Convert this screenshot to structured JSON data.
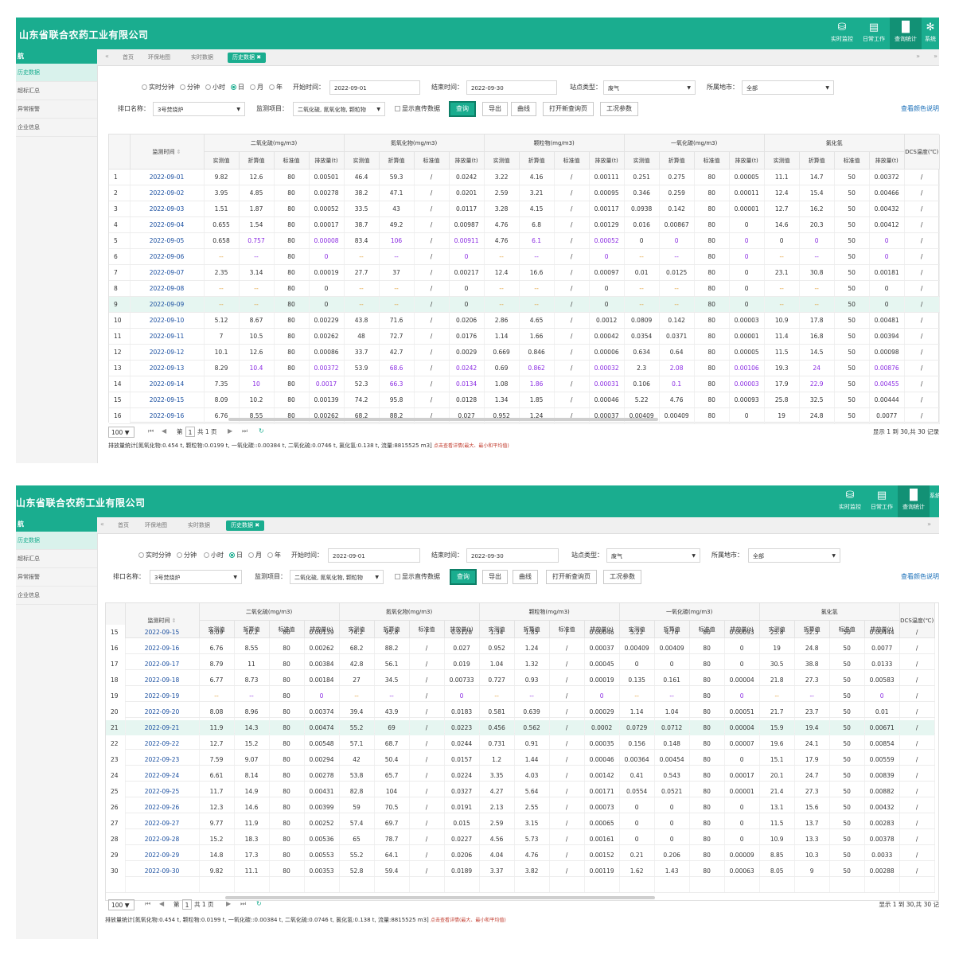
{
  "app": {
    "title": "山东省联合农药工业有限公司",
    "title2": "山东省联合农药工业有限公司",
    "nav": [
      "实时监控",
      "日常工作",
      "查询统计",
      "系统"
    ]
  },
  "sidebar": {
    "head": "航",
    "items": [
      "历史数据",
      "超标汇总",
      "异常报警",
      "企业信息"
    ]
  },
  "tabs": [
    "首页",
    "环保地图",
    "实时数据",
    "历史数据"
  ],
  "filters": {
    "granularity": [
      "实时分钟",
      "分钟",
      "小时",
      "日",
      "月",
      "年"
    ],
    "start_label": "开始时间：",
    "start": "2022-09-01",
    "end_label": "结束时间：",
    "end": "2022-09-30",
    "station_label": "站点类型：",
    "station": "废气",
    "city_label": "所属地市：",
    "city": "全部",
    "outlet_label": "排口名称：",
    "outlet": "3号焚烧炉",
    "item_label": "监测项目：",
    "item": "二氧化硫, 氮氧化物, 颗粒物",
    "show_label": "显示直传数据",
    "btn_query": "查询",
    "btn_export": "导出",
    "btn_curve": "曲线",
    "btn_newpage": "打开新查询页",
    "btn_params": "工况参数",
    "color_link": "查看颜色说明"
  },
  "table": {
    "time_header": "监测时间",
    "groups": [
      "二氧化硫(mg/m3)",
      "氮氧化物(mg/m3)",
      "颗粒物(mg/m3)",
      "一氧化碳(mg/m3)",
      "氯化氢"
    ],
    "dcs": "DCS温度(℃)",
    "sub": [
      "实测值",
      "折算值",
      "标准值",
      "排放量(t)"
    ],
    "rows": [
      [
        "1",
        "2022-09-01",
        "9.82",
        "12.6",
        "80",
        "0.00501",
        "46.4",
        "59.3",
        "/",
        "0.0242",
        "3.22",
        "4.16",
        "/",
        "0.00111",
        "0.251",
        "0.275",
        "80",
        "0.00005",
        "11.1",
        "14.7",
        "50",
        "0.00372",
        "/"
      ],
      [
        "2",
        "2022-09-02",
        "3.95",
        "4.85",
        "80",
        "0.00278",
        "38.2",
        "47.1",
        "/",
        "0.0201",
        "2.59",
        "3.21",
        "/",
        "0.00095",
        "0.346",
        "0.259",
        "80",
        "0.00011",
        "12.4",
        "15.4",
        "50",
        "0.00466",
        "/"
      ],
      [
        "3",
        "2022-09-03",
        "1.51",
        "1.87",
        "80",
        "0.00052",
        "33.5",
        "43",
        "/",
        "0.0117",
        "3.28",
        "4.15",
        "/",
        "0.00117",
        "0.0938",
        "0.142",
        "80",
        "0.00001",
        "12.7",
        "16.2",
        "50",
        "0.00432",
        "/"
      ],
      [
        "4",
        "2022-09-04",
        "0.655",
        "1.54",
        "80",
        "0.00017",
        "38.7",
        "49.2",
        "/",
        "0.00987",
        "4.76",
        "6.8",
        "/",
        "0.00129",
        "0.016",
        "0.00867",
        "80",
        "0",
        "14.6",
        "20.3",
        "50",
        "0.00412",
        "/"
      ],
      [
        "5",
        "2022-09-05",
        "0.658",
        "0.757",
        "80",
        "0.00008",
        "83.4",
        "106",
        "/",
        "0.00911",
        "4.76",
        "6.1",
        "/",
        "0.00052",
        "0",
        "0",
        "80",
        "0",
        "0",
        "0",
        "50",
        "0",
        "/"
      ],
      [
        "6",
        "2022-09-06",
        "--",
        "--",
        "80",
        "0",
        "--",
        "--",
        "/",
        "0",
        "--",
        "--",
        "/",
        "0",
        "--",
        "--",
        "80",
        "0",
        "--",
        "--",
        "50",
        "0",
        "/"
      ],
      [
        "7",
        "2022-09-07",
        "2.35",
        "3.14",
        "80",
        "0.00019",
        "27.7",
        "37",
        "/",
        "0.00217",
        "12.4",
        "16.6",
        "/",
        "0.00097",
        "0.01",
        "0.0125",
        "80",
        "0",
        "23.1",
        "30.8",
        "50",
        "0.00181",
        "/"
      ],
      [
        "8",
        "2022-09-08",
        "--",
        "--",
        "80",
        "0",
        "--",
        "--",
        "/",
        "0",
        "--",
        "--",
        "/",
        "0",
        "--",
        "--",
        "80",
        "0",
        "--",
        "--",
        "50",
        "0",
        "/"
      ],
      [
        "9",
        "2022-09-09",
        "--",
        "--",
        "80",
        "0",
        "--",
        "--",
        "/",
        "0",
        "--",
        "--",
        "/",
        "0",
        "--",
        "--",
        "80",
        "0",
        "--",
        "--",
        "50",
        "0",
        "/"
      ],
      [
        "10",
        "2022-09-10",
        "5.12",
        "8.67",
        "80",
        "0.00229",
        "43.8",
        "71.6",
        "/",
        "0.0206",
        "2.86",
        "4.65",
        "/",
        "0.0012",
        "0.0809",
        "0.142",
        "80",
        "0.00003",
        "10.9",
        "17.8",
        "50",
        "0.00481",
        "/"
      ],
      [
        "11",
        "2022-09-11",
        "7",
        "10.5",
        "80",
        "0.00262",
        "48",
        "72.7",
        "/",
        "0.0176",
        "1.14",
        "1.66",
        "/",
        "0.00042",
        "0.0354",
        "0.0371",
        "80",
        "0.00001",
        "11.4",
        "16.8",
        "50",
        "0.00394",
        "/"
      ],
      [
        "12",
        "2022-09-12",
        "10.1",
        "12.6",
        "80",
        "0.00086",
        "33.7",
        "42.7",
        "/",
        "0.0029",
        "0.669",
        "0.846",
        "/",
        "0.00006",
        "0.634",
        "0.64",
        "80",
        "0.00005",
        "11.5",
        "14.5",
        "50",
        "0.00098",
        "/"
      ],
      [
        "13",
        "2022-09-13",
        "8.29",
        "10.4",
        "80",
        "0.00372",
        "53.9",
        "68.6",
        "/",
        "0.0242",
        "0.69",
        "0.862",
        "/",
        "0.00032",
        "2.3",
        "2.08",
        "80",
        "0.00106",
        "19.3",
        "24",
        "50",
        "0.00876",
        "/"
      ],
      [
        "14",
        "2022-09-14",
        "7.35",
        "10",
        "80",
        "0.0017",
        "52.3",
        "66.3",
        "/",
        "0.0134",
        "1.08",
        "1.86",
        "/",
        "0.00031",
        "0.106",
        "0.1",
        "80",
        "0.00003",
        "17.9",
        "22.9",
        "50",
        "0.00455",
        "/"
      ],
      [
        "15",
        "2022-09-15",
        "8.09",
        "10.2",
        "80",
        "0.00139",
        "74.2",
        "95.8",
        "/",
        "0.0128",
        "1.34",
        "1.85",
        "/",
        "0.00046",
        "5.22",
        "4.76",
        "80",
        "0.00093",
        "25.8",
        "32.5",
        "50",
        "0.00444",
        "/"
      ],
      [
        "16",
        "2022-09-16",
        "6.76",
        "8.55",
        "80",
        "0.00262",
        "68.2",
        "88.2",
        "/",
        "0.027",
        "0.952",
        "1.24",
        "/",
        "0.00037",
        "0.00409",
        "0.00409",
        "80",
        "0",
        "19",
        "24.8",
        "50",
        "0.0077",
        "/"
      ],
      [
        "17",
        "2022-09-17",
        "8.79",
        "11",
        "80",
        "0.00384",
        "42.8",
        "56.1",
        "/",
        "0.019",
        "1.04",
        "1.32",
        "/",
        "0.00045",
        "0",
        "0",
        "80",
        "0",
        "30.5",
        "38.8",
        "50",
        "0.0133",
        "/"
      ],
      [
        "18",
        "2022-09-18",
        "6.77",
        "8.73",
        "80",
        "0.00184",
        "27",
        "34.5",
        "/",
        "0.00733",
        "0.727",
        "0.93",
        "/",
        "0.00019",
        "0.135",
        "0.161",
        "80",
        "0.00004",
        "21.8",
        "27.3",
        "50",
        "0.00583",
        "/"
      ],
      [
        "19",
        "2022-09-19",
        "--",
        "--",
        "80",
        "0",
        "--",
        "--",
        "/",
        "0",
        "--",
        "--",
        "/",
        "0",
        "--",
        "--",
        "80",
        "0",
        "--",
        "--",
        "50",
        "0",
        "/"
      ],
      [
        "20",
        "2022-09-20",
        "8.08",
        "8.96",
        "80",
        "0.00374",
        "39.4",
        "43.9",
        "/",
        "0.0183",
        "0.581",
        "0.639",
        "/",
        "0.00029",
        "1.14",
        "1.04",
        "80",
        "0.00051",
        "21.7",
        "23.7",
        "50",
        "0.01",
        "/"
      ],
      [
        "21",
        "2022-09-21",
        "11.9",
        "14.3",
        "80",
        "0.00474",
        "55.2",
        "69",
        "/",
        "0.0223",
        "0.456",
        "0.562",
        "/",
        "0.0002",
        "0.0729",
        "0.0712",
        "80",
        "0.00004",
        "15.9",
        "19.4",
        "50",
        "0.00671",
        "/"
      ],
      [
        "22",
        "2022-09-22",
        "12.7",
        "15.2",
        "80",
        "0.00548",
        "57.1",
        "68.7",
        "/",
        "0.0244",
        "0.731",
        "0.91",
        "/",
        "0.00035",
        "0.156",
        "0.148",
        "80",
        "0.00007",
        "19.6",
        "24.1",
        "50",
        "0.00854",
        "/"
      ],
      [
        "23",
        "2022-09-23",
        "7.59",
        "9.07",
        "80",
        "0.00294",
        "42",
        "50.4",
        "/",
        "0.0157",
        "1.2",
        "1.44",
        "/",
        "0.00046",
        "0.00364",
        "0.00454",
        "80",
        "0",
        "15.1",
        "17.9",
        "50",
        "0.00559",
        "/"
      ],
      [
        "24",
        "2022-09-24",
        "6.61",
        "8.14",
        "80",
        "0.00278",
        "53.8",
        "65.7",
        "/",
        "0.0224",
        "3.35",
        "4.03",
        "/",
        "0.00142",
        "0.41",
        "0.543",
        "80",
        "0.00017",
        "20.1",
        "24.7",
        "50",
        "0.00839",
        "/"
      ],
      [
        "25",
        "2022-09-25",
        "11.7",
        "14.9",
        "80",
        "0.00431",
        "82.8",
        "104",
        "/",
        "0.0327",
        "4.27",
        "5.64",
        "/",
        "0.00171",
        "0.0554",
        "0.0521",
        "80",
        "0.00001",
        "21.4",
        "27.3",
        "50",
        "0.00882",
        "/"
      ],
      [
        "26",
        "2022-09-26",
        "12.3",
        "14.6",
        "80",
        "0.00399",
        "59",
        "70.5",
        "/",
        "0.0191",
        "2.13",
        "2.55",
        "/",
        "0.00073",
        "0",
        "0",
        "80",
        "0",
        "13.1",
        "15.6",
        "50",
        "0.00432",
        "/"
      ],
      [
        "27",
        "2022-09-27",
        "9.77",
        "11.9",
        "80",
        "0.00252",
        "57.4",
        "69.7",
        "/",
        "0.015",
        "2.59",
        "3.15",
        "/",
        "0.00065",
        "0",
        "0",
        "80",
        "0",
        "11.5",
        "13.7",
        "50",
        "0.00283",
        "/"
      ],
      [
        "28",
        "2022-09-28",
        "15.2",
        "18.3",
        "80",
        "0.00536",
        "65",
        "78.7",
        "/",
        "0.0227",
        "4.56",
        "5.73",
        "/",
        "0.00161",
        "0",
        "0",
        "80",
        "0",
        "10.9",
        "13.3",
        "50",
        "0.00378",
        "/"
      ],
      [
        "29",
        "2022-09-29",
        "14.8",
        "17.3",
        "80",
        "0.00553",
        "55.2",
        "64.1",
        "/",
        "0.0206",
        "4.04",
        "4.76",
        "/",
        "0.00152",
        "0.21",
        "0.206",
        "80",
        "0.00009",
        "8.85",
        "10.3",
        "50",
        "0.0033",
        "/"
      ],
      [
        "30",
        "2022-09-30",
        "9.82",
        "11.1",
        "80",
        "0.00353",
        "52.8",
        "59.4",
        "/",
        "0.0189",
        "3.37",
        "3.82",
        "/",
        "0.00119",
        "1.62",
        "1.43",
        "80",
        "0.00063",
        "8.05",
        "9",
        "50",
        "0.00288",
        "/"
      ]
    ]
  },
  "pager": {
    "size": "100",
    "page_prefix": "第",
    "page": "1",
    "total": "共 1 页",
    "info": "显示 1 到 30,共 30 记录",
    "info2": "显示 1 到 30,共 30 记"
  },
  "summary": {
    "text": "排放量统计[氮氧化物:0.454 t, 颗粒物:0.0199 t, 一氧化碳::0.00384 t, 二氧化硫:0.0746 t, 氯化氢:0.138 t, 流量:8815525 m3]",
    "link": "点击查看详情(最大、最小和平均值)"
  },
  "colors": {
    "brand": "#1aad8f",
    "over_limit": "#8a2be2",
    "missing": "#e09a2c",
    "highlight_row": "#e6f6f1"
  }
}
